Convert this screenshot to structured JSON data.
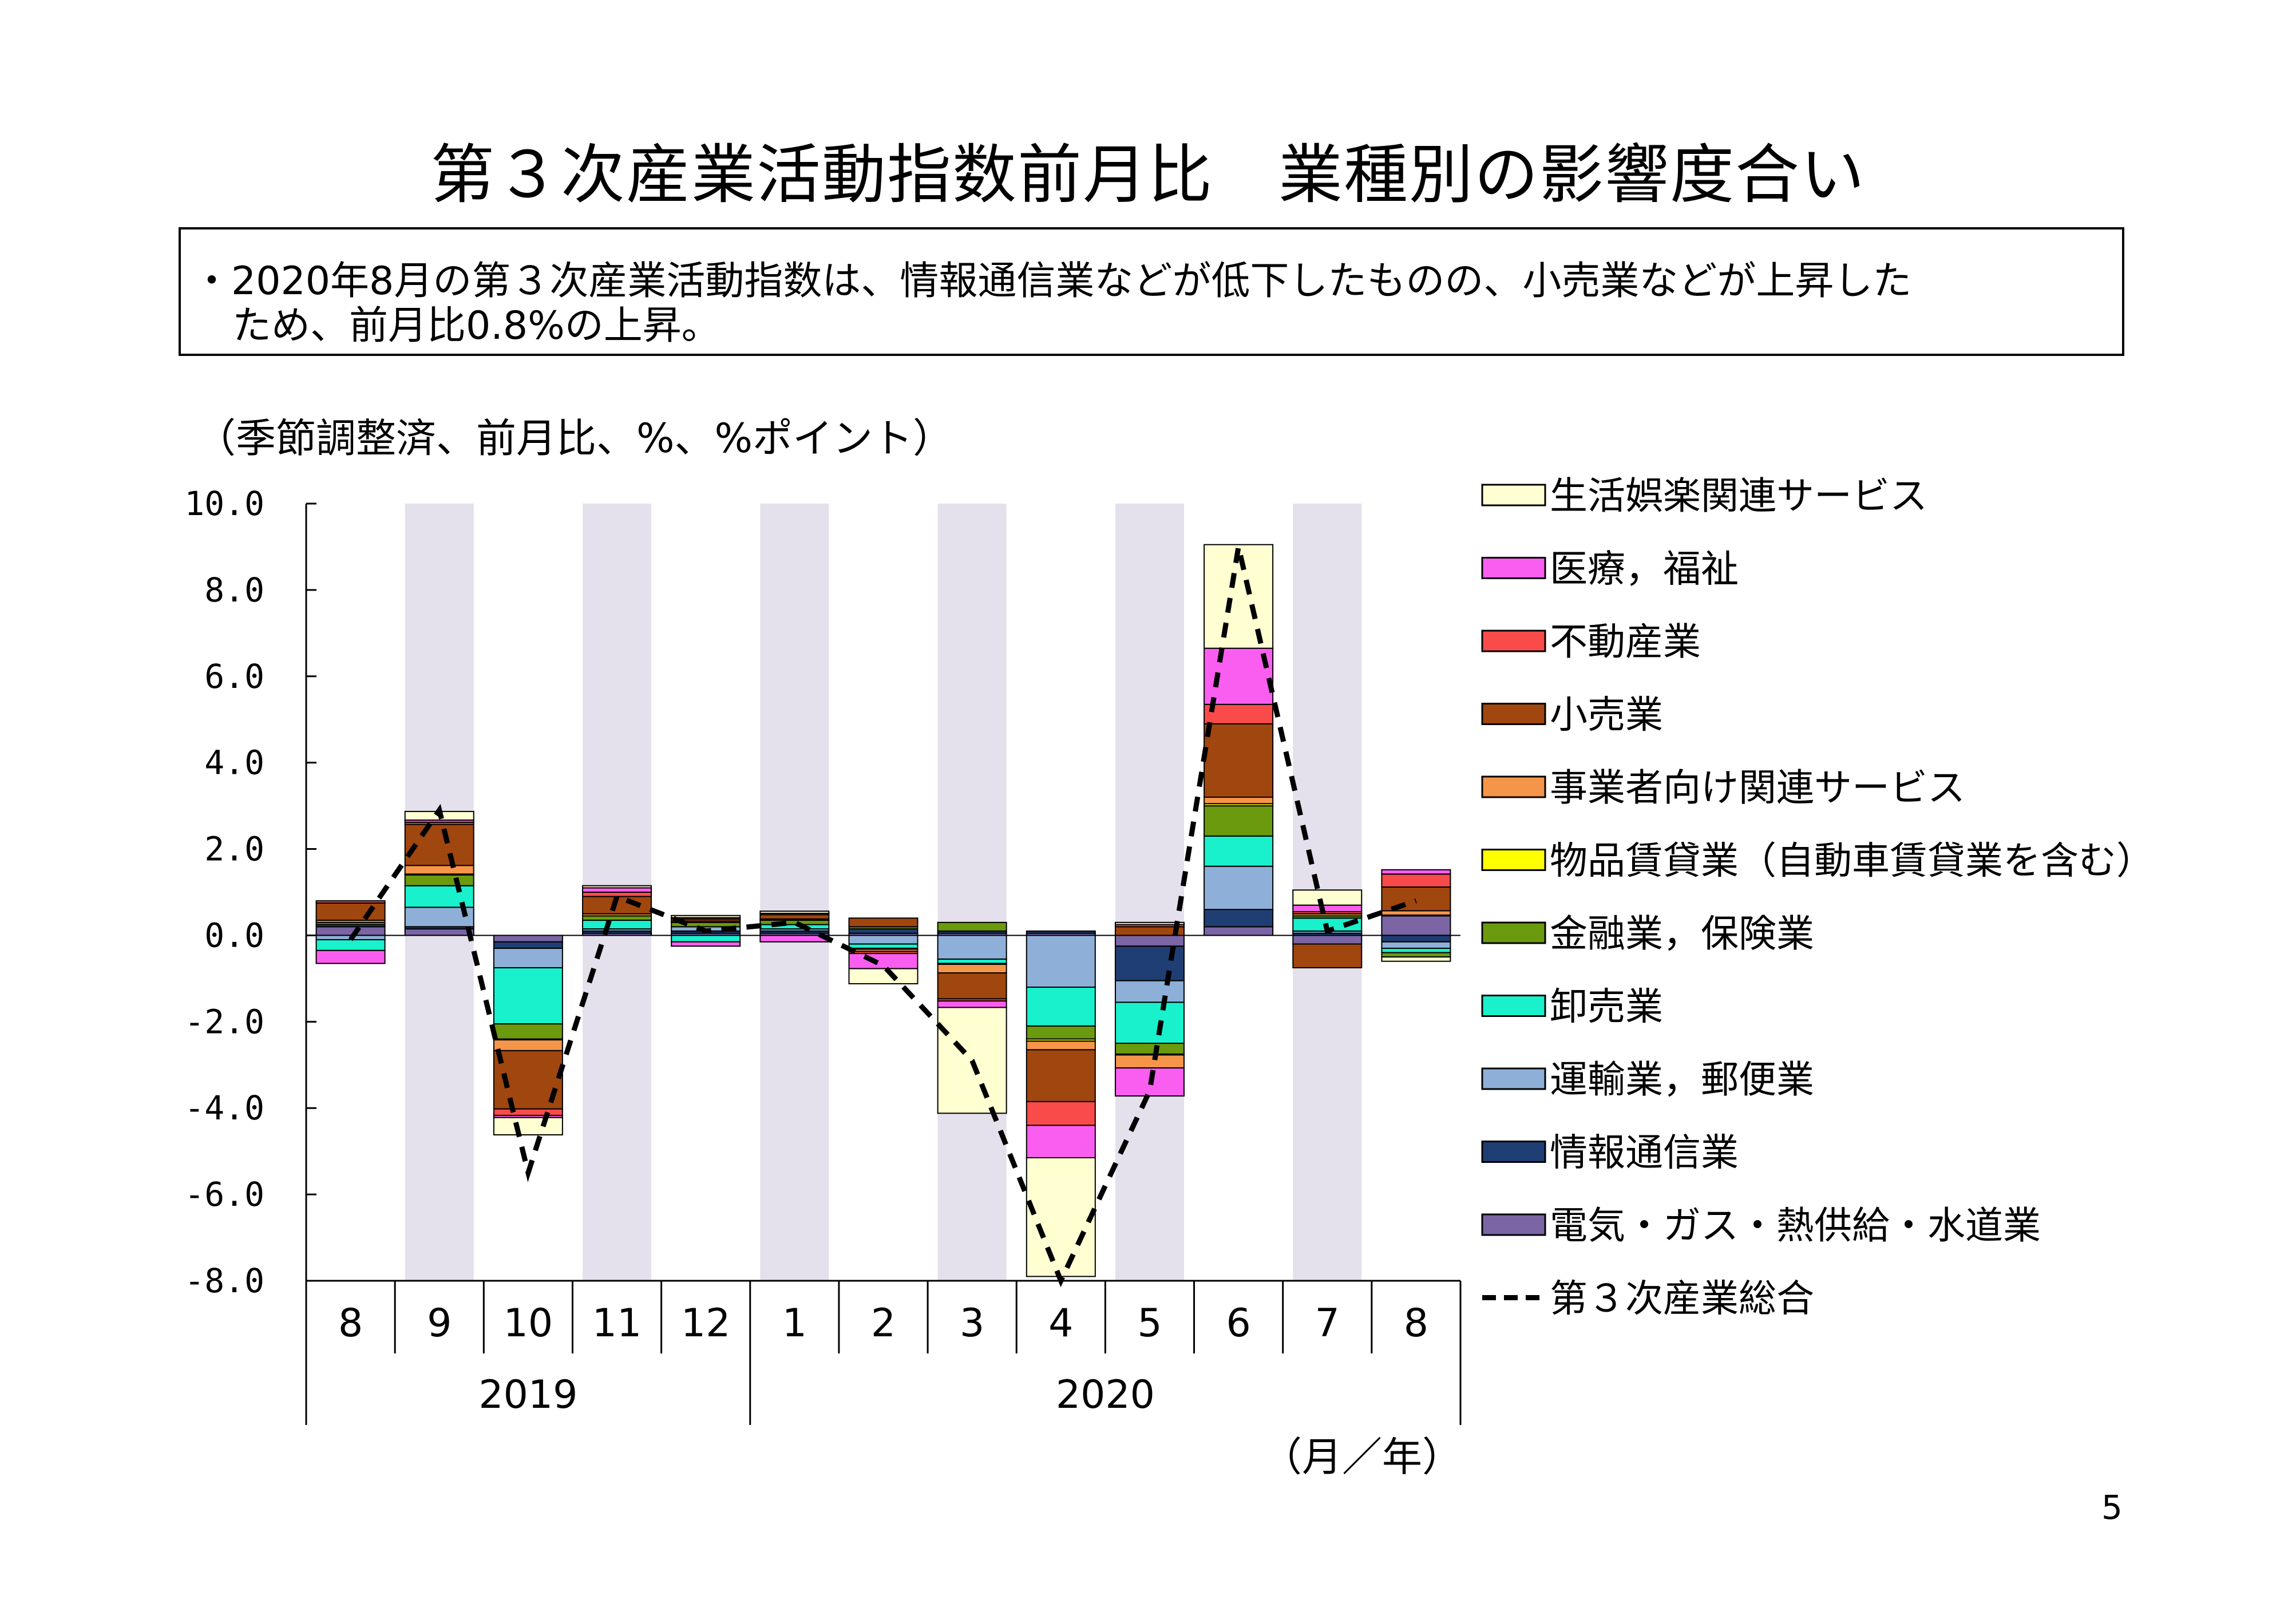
{
  "title": "第３次産業活動指数前月比　業種別の影響度合い",
  "summary": {
    "line1": "・2020年8月の第３次産業活動指数は、情報通信業などが低下したものの、小売業などが上昇した",
    "line2": "ため、前月比0.8%の上昇。"
  },
  "unit_note": "（季節調整済、前月比、%、%ポイント）",
  "axis_note": "（月／年）",
  "page_number": "5",
  "chart_data": {
    "type": "bar",
    "stacked": true,
    "categories": [
      "8",
      "9",
      "10",
      "11",
      "12",
      "1",
      "2",
      "3",
      "4",
      "5",
      "6",
      "7",
      "8"
    ],
    "year_groups": [
      {
        "label": "2019",
        "months": [
          "8",
          "9",
          "10",
          "11",
          "12"
        ]
      },
      {
        "label": "2020",
        "months": [
          "1",
          "2",
          "3",
          "4",
          "5",
          "6",
          "7",
          "8"
        ]
      }
    ],
    "y_ticks": [
      "10.0",
      "8.0",
      "6.0",
      "4.0",
      "2.0",
      "0.0",
      "-2.0",
      "-4.0",
      "-6.0",
      "-8.0"
    ],
    "ylim": [
      -8,
      10
    ],
    "shaded_months": [
      "9",
      "11",
      "1",
      "3",
      "5",
      "7"
    ],
    "shade_color": "#e4e0ec",
    "series": [
      {
        "name": "電気・ガス・熱供給・水道業",
        "color": "#7b65a4",
        "values": [
          0.2,
          0.15,
          -0.15,
          0.05,
          0.05,
          0.05,
          0.05,
          0.05,
          0.05,
          -0.25,
          0.2,
          -0.2,
          0.45
        ]
      },
      {
        "name": "情報通信業",
        "color": "#1f3e73",
        "values": [
          0.05,
          0.05,
          -0.15,
          0.05,
          0.05,
          0.05,
          0.1,
          0.05,
          0.05,
          -0.8,
          0.4,
          0.05,
          -0.15
        ]
      },
      {
        "name": "運輸業，郵便業",
        "color": "#8eb0d8",
        "values": [
          -0.1,
          0.45,
          -0.45,
          0.05,
          0.1,
          0.05,
          -0.2,
          -0.55,
          -1.2,
          -0.5,
          1.0,
          0.05,
          -0.15
        ]
      },
      {
        "name": "卸売業",
        "color": "#19f0cc",
        "values": [
          -0.25,
          0.5,
          -1.3,
          0.2,
          -0.15,
          0.1,
          -0.1,
          -0.1,
          -0.9,
          -0.95,
          0.7,
          0.3,
          -0.1
        ]
      },
      {
        "name": "金融業，保険業",
        "color": "#6b9a0e",
        "values": [
          0.05,
          0.25,
          -0.35,
          0.1,
          0.1,
          0.1,
          0.05,
          0.2,
          -0.3,
          -0.25,
          0.7,
          0.05,
          -0.1
        ]
      },
      {
        "name": "物品賃貸業（自動車賃貸業を含む）",
        "color": "#ffff00",
        "values": [
          0.0,
          0.02,
          -0.02,
          0.0,
          0.0,
          0.0,
          -0.02,
          -0.02,
          -0.05,
          -0.02,
          0.05,
          0.0,
          0.02
        ]
      },
      {
        "name": "事業者向け関連サービス",
        "color": "#f5954a",
        "values": [
          0.05,
          0.2,
          -0.25,
          0.05,
          0.03,
          0.03,
          -0.05,
          -0.2,
          -0.2,
          -0.3,
          0.15,
          0.05,
          0.1
        ]
      },
      {
        "name": "小売業",
        "color": "#a0460f",
        "values": [
          0.4,
          0.95,
          -1.35,
          0.4,
          0.05,
          0.1,
          0.2,
          -0.6,
          -1.2,
          0.2,
          1.7,
          -0.55,
          0.55
        ]
      },
      {
        "name": "不動産業",
        "color": "#fa4b4b",
        "values": [
          0.05,
          0.05,
          -0.15,
          0.1,
          0.03,
          0.03,
          -0.05,
          -0.05,
          -0.55,
          0.05,
          0.45,
          0.05,
          0.3
        ]
      },
      {
        "name": "医療，福祉",
        "color": "#fa5ef0",
        "values": [
          -0.3,
          0.05,
          -0.05,
          0.1,
          -0.1,
          -0.15,
          -0.35,
          -0.15,
          -0.75,
          -0.65,
          1.3,
          0.15,
          0.1
        ]
      },
      {
        "name": "生活娯楽関連サービス",
        "color": "#ffffd2",
        "values": [
          0.0,
          0.2,
          -0.4,
          0.05,
          0.05,
          0.05,
          -0.35,
          -2.45,
          -2.75,
          0.05,
          2.4,
          0.35,
          -0.1
        ]
      }
    ],
    "total_line": {
      "name": "第３次産業総合",
      "color": "#000000",
      "dashed": true,
      "values": [
        -0.1,
        2.9,
        -5.5,
        0.9,
        0.1,
        0.3,
        -0.7,
        -2.9,
        -8.0,
        -3.6,
        9.0,
        0.1,
        0.8
      ]
    }
  }
}
